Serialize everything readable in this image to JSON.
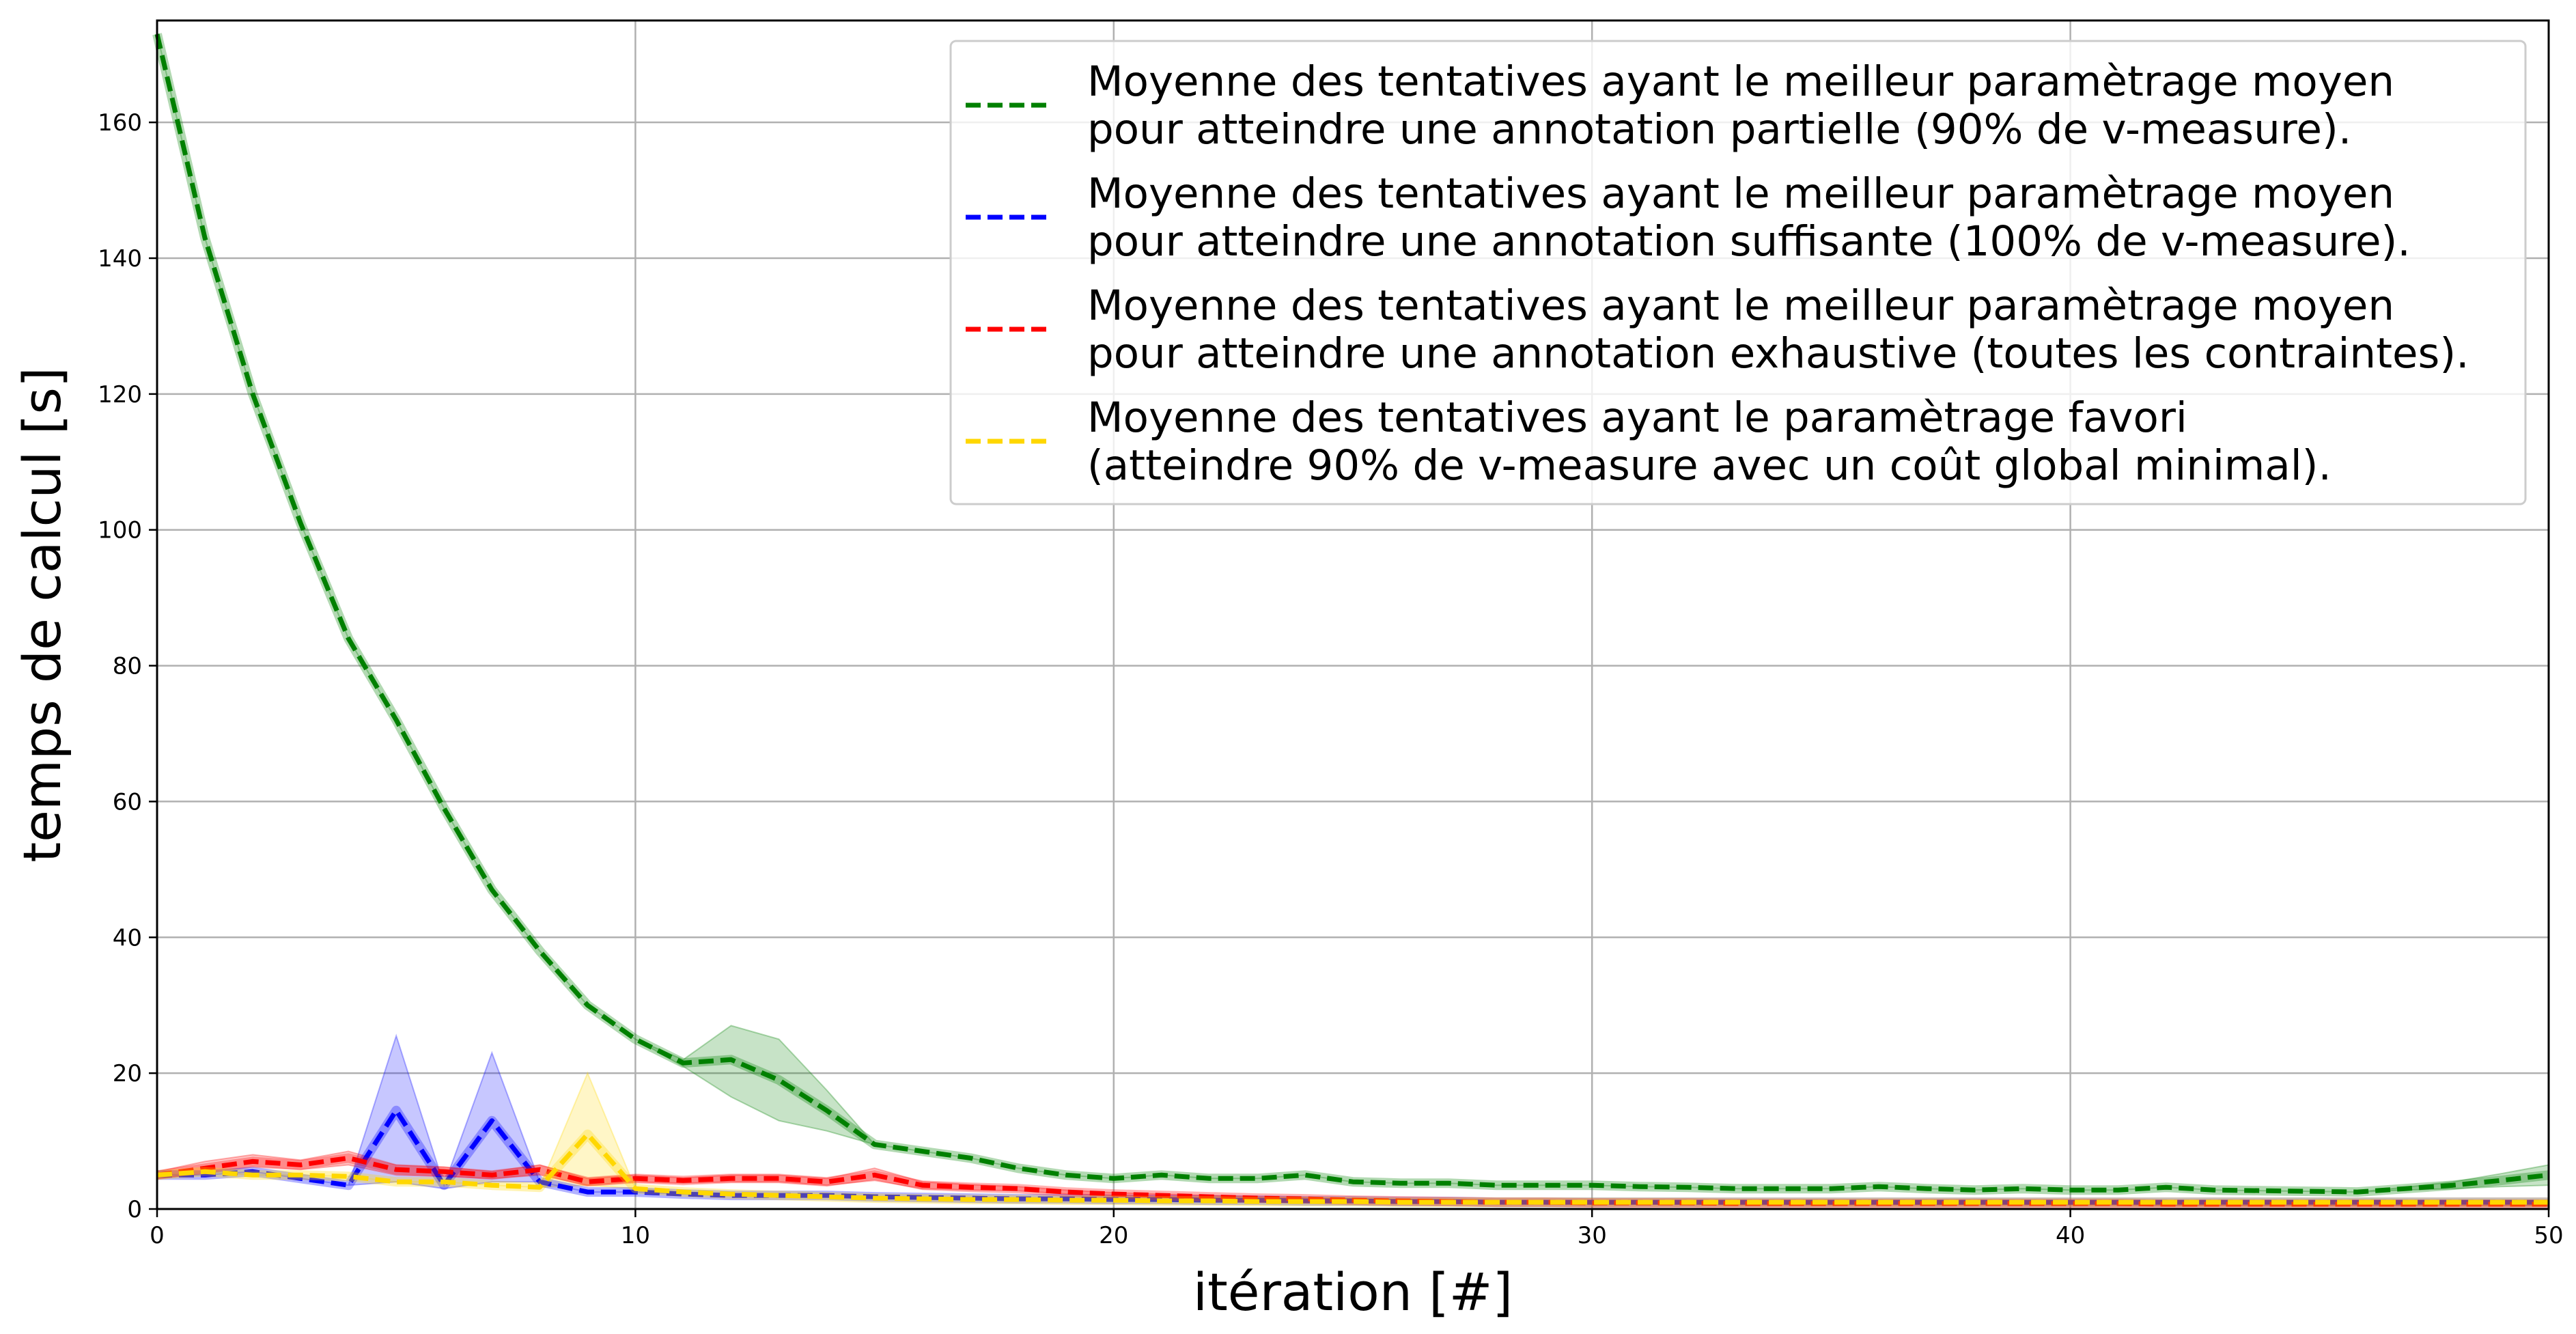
{
  "chart_data": {
    "type": "line",
    "title": "",
    "xlabel": "itération [#]",
    "ylabel": "temps de calcul [s]",
    "xlim": [
      0,
      50
    ],
    "ylim": [
      0,
      175
    ],
    "x_ticks": [
      0,
      10,
      20,
      30,
      40,
      50
    ],
    "y_ticks": [
      0,
      20,
      40,
      60,
      80,
      100,
      120,
      140,
      160
    ],
    "grid": true,
    "legend_position": "top-right",
    "x": [
      0,
      1,
      2,
      3,
      4,
      5,
      6,
      7,
      8,
      9,
      10,
      11,
      12,
      13,
      14,
      15,
      16,
      17,
      18,
      19,
      20,
      21,
      22,
      23,
      24,
      25,
      26,
      27,
      28,
      29,
      30,
      31,
      32,
      33,
      34,
      35,
      36,
      37,
      38,
      39,
      40,
      41,
      42,
      43,
      44,
      45,
      46,
      47,
      48,
      49,
      50
    ],
    "series": [
      {
        "name": "Moyenne des tentatives ayant le meilleur paramètrage moyen pour atteindre une annotation partielle (90% de v-measure).",
        "legend_lines": [
          "Moyenne des tentatives ayant le meilleur paramètrage moyen",
          "pour atteindre une annotation partielle (90% de v-measure)."
        ],
        "color": "#008000",
        "values": [
          173,
          143,
          120,
          101,
          84,
          72,
          59,
          47,
          38,
          30,
          25,
          21.5,
          22,
          19,
          14.5,
          9.5,
          8.5,
          7.5,
          6,
          5,
          4.5,
          5,
          4.5,
          4.5,
          5,
          4,
          3.8,
          3.8,
          3.5,
          3.5,
          3.5,
          3.3,
          3.2,
          3,
          3,
          3,
          3.3,
          3,
          2.8,
          3,
          2.8,
          2.8,
          3.2,
          2.8,
          2.7,
          2.6,
          2.5,
          3,
          3.5,
          4.2,
          5
        ],
        "lower": [
          173,
          143,
          120,
          101,
          84,
          72,
          59,
          47,
          38,
          30,
          25,
          21,
          16.5,
          13,
          11.5,
          9.5,
          8.5,
          7.5,
          6,
          5,
          4.5,
          5,
          4.5,
          4.5,
          5,
          4,
          3.8,
          3.8,
          3.5,
          3.5,
          3.5,
          3.3,
          3.2,
          3,
          3,
          3,
          3.3,
          3,
          2.8,
          3,
          2.8,
          2.8,
          3.2,
          2.8,
          2.7,
          2.6,
          2.5,
          2.8,
          3,
          3.3,
          3.5
        ],
        "upper": [
          173,
          143,
          120,
          101,
          84,
          72,
          59,
          47,
          38,
          30,
          25,
          22,
          27,
          25,
          17.5,
          9.5,
          8.5,
          7.5,
          6,
          5,
          4.5,
          5,
          4.5,
          4.5,
          5,
          4,
          3.8,
          3.8,
          3.5,
          3.5,
          3.5,
          3.3,
          3.2,
          3,
          3,
          3,
          3.3,
          3,
          2.8,
          3,
          2.8,
          2.8,
          3.2,
          2.8,
          2.7,
          2.6,
          2.5,
          3.2,
          4,
          5.2,
          6.5
        ]
      },
      {
        "name": "Moyenne des tentatives ayant le meilleur paramètrage moyen pour atteindre une annotation suffisante (100% de v-measure).",
        "legend_lines": [
          "Moyenne des tentatives ayant le meilleur paramètrage moyen",
          "pour atteindre une annotation suffisante (100% de v-measure)."
        ],
        "color": "#0000ff",
        "values": [
          5,
          5,
          5.5,
          4.5,
          3.5,
          14.5,
          3.5,
          13,
          4,
          2.5,
          2.5,
          2.2,
          2,
          2,
          2,
          1.8,
          1.7,
          1.6,
          1.5,
          1.5,
          1.4,
          1.4,
          1.3,
          1.3,
          1.2,
          1.2,
          1.1,
          1.1,
          1,
          1,
          1,
          1,
          1,
          1,
          1,
          1,
          1,
          1,
          1,
          1,
          1,
          1,
          1,
          1,
          1,
          1,
          1,
          1,
          1,
          1,
          1
        ],
        "lower": [
          5,
          5,
          5.5,
          4.5,
          3.5,
          4,
          3,
          4,
          4,
          2.5,
          2.5,
          2.2,
          2,
          2,
          2,
          1.8,
          1.7,
          1.6,
          1.5,
          1.5,
          1.4,
          1.4,
          1.3,
          1.3,
          1.2,
          1.2,
          1.1,
          1.1,
          1,
          1,
          1,
          1,
          1,
          1,
          1,
          1,
          1,
          1,
          1,
          1,
          1,
          1,
          1,
          1,
          1,
          1,
          1,
          1,
          1,
          1,
          1
        ],
        "upper": [
          5,
          5,
          5.5,
          4.5,
          3.5,
          25.5,
          3.5,
          23,
          4,
          2.5,
          2.5,
          2.2,
          2,
          2,
          2,
          1.8,
          1.7,
          1.6,
          1.5,
          1.5,
          1.4,
          1.4,
          1.3,
          1.3,
          1.2,
          1.2,
          1.1,
          1.1,
          1,
          1,
          1,
          1,
          1,
          1,
          1,
          1,
          1,
          1,
          1,
          1,
          1,
          1,
          1,
          1,
          1,
          1,
          1,
          1,
          1,
          1,
          1
        ]
      },
      {
        "name": "Moyenne des tentatives ayant le meilleur paramètrage moyen pour atteindre une annotation exhaustive (toutes les contraintes).",
        "legend_lines": [
          "Moyenne des tentatives ayant le meilleur paramètrage moyen",
          "pour atteindre une annotation exhaustive (toutes les contraintes)."
        ],
        "color": "#ff0000",
        "values": [
          5,
          6,
          7,
          6.5,
          7.5,
          5.8,
          5.5,
          5,
          5.8,
          4,
          4.5,
          4.2,
          4.5,
          4.5,
          4,
          5,
          3.5,
          3.2,
          3,
          2.5,
          2.2,
          2,
          1.8,
          1.6,
          1.5,
          1.3,
          1.2,
          1.1,
          1,
          1,
          0.9,
          0.9,
          0.9,
          0.8,
          0.8,
          0.8,
          0.8,
          0.8,
          0.8,
          0.8,
          0.8,
          0.8,
          0.7,
          0.7,
          0.7,
          0.7,
          0.7,
          0.7,
          0.7,
          0.7,
          0.7
        ],
        "lower": [
          4.5,
          5.2,
          6.2,
          5.8,
          6.5,
          5,
          4.8,
          4.5,
          5,
          3.5,
          4,
          3.8,
          4,
          4,
          3.5,
          4.2,
          3,
          2.8,
          2.7,
          2.2,
          2,
          1.8,
          1.6,
          1.4,
          1.3,
          1.1,
          1,
          0.9,
          0.8,
          0.8,
          0.7,
          0.7,
          0.7,
          0.6,
          0.6,
          0.6,
          0.6,
          0.6,
          0.6,
          0.6,
          0.6,
          0.6,
          0.5,
          0.5,
          0.5,
          0.5,
          0.5,
          0.5,
          0.5,
          0.5,
          0.5
        ],
        "upper": [
          5.5,
          7,
          8,
          7.2,
          8.5,
          6.5,
          6.2,
          5.5,
          6.5,
          4.5,
          5,
          4.6,
          5,
          5,
          4.5,
          6,
          4,
          3.6,
          3.3,
          2.8,
          2.4,
          2.2,
          2,
          1.8,
          1.7,
          1.5,
          1.4,
          1.3,
          1.2,
          1.2,
          1.1,
          1.1,
          1.1,
          1,
          1,
          1,
          1,
          1,
          1,
          1,
          1,
          1,
          0.9,
          0.9,
          0.9,
          0.9,
          0.9,
          0.9,
          0.9,
          0.9,
          0.9
        ]
      },
      {
        "name": "Moyenne des tentatives ayant le paramètrage favori (atteindre 90% de v-measure avec un coût global minimal).",
        "legend_lines": [
          "Moyenne des tentatives ayant le paramètrage favori",
          "(atteindre 90% de v-measure avec un coût global minimal)."
        ],
        "color": "#ffd700",
        "values": [
          5,
          5.5,
          5,
          5,
          4.8,
          4,
          4,
          3.5,
          3.2,
          11,
          3,
          2.5,
          2.2,
          2,
          1.8,
          1.6,
          1.5,
          1.4,
          1.4,
          1.3,
          1.3,
          1.2,
          1.2,
          1.1,
          1.1,
          1.1,
          1,
          1,
          1,
          1,
          1,
          1,
          1,
          1,
          1,
          1,
          1,
          1,
          1,
          1,
          1,
          1,
          1,
          1,
          1,
          1,
          1,
          1,
          1,
          1,
          1
        ],
        "lower": [
          5,
          5.5,
          5,
          5,
          4.8,
          4,
          4,
          3.5,
          3.2,
          3.5,
          3,
          2.5,
          2.2,
          2,
          1.8,
          1.6,
          1.5,
          1.4,
          1.4,
          1.3,
          1.3,
          1.2,
          1.2,
          1.1,
          1.1,
          1.1,
          1,
          1,
          1,
          1,
          1,
          1,
          1,
          1,
          1,
          1,
          1,
          1,
          1,
          1,
          1,
          1,
          1,
          1,
          1,
          1,
          1,
          1,
          1,
          1,
          1
        ],
        "upper": [
          5,
          5.5,
          5,
          5,
          4.8,
          4,
          4,
          3.5,
          3.2,
          20,
          3,
          2.5,
          2.2,
          2,
          1.8,
          1.6,
          1.5,
          1.4,
          1.4,
          1.3,
          1.3,
          1.2,
          1.2,
          1.1,
          1.1,
          1.1,
          1,
          1,
          1,
          1,
          1,
          1,
          1,
          1,
          1,
          1,
          1,
          1,
          1,
          1,
          1,
          1,
          1,
          1,
          1,
          1,
          1,
          1,
          1,
          1,
          1
        ]
      }
    ]
  }
}
